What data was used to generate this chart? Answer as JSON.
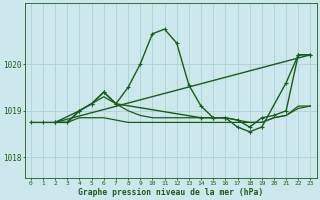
{
  "bg_color": "#cce8ec",
  "grid_color": "#b0d4d8",
  "line_color": "#1a5c1a",
  "title": "Graphe pression niveau de la mer (hPa)",
  "xlim": [
    -0.5,
    23.5
  ],
  "ylim": [
    1017.55,
    1021.3
  ],
  "yticks": [
    1018,
    1019,
    1020
  ],
  "xticks": [
    0,
    1,
    2,
    3,
    4,
    5,
    6,
    7,
    8,
    9,
    10,
    11,
    12,
    13,
    14,
    15,
    16,
    17,
    18,
    19,
    20,
    21,
    22,
    23
  ],
  "lines": [
    {
      "x": [
        0,
        1,
        2,
        3,
        4,
        5,
        6,
        7,
        8,
        9,
        10,
        11,
        12,
        13,
        14,
        15,
        16,
        17,
        18,
        19,
        20,
        21,
        22,
        23
      ],
      "y": [
        1018.75,
        1018.75,
        1018.75,
        1018.75,
        1019.0,
        1019.15,
        1019.4,
        1019.15,
        1019.5,
        1020.0,
        1020.65,
        1020.75,
        1020.45,
        1019.55,
        1019.1,
        1018.85,
        1018.85,
        1018.8,
        1018.65,
        1018.85,
        1018.9,
        1019.0,
        1020.2,
        1020.2
      ],
      "marker": true,
      "lw": 1.0
    },
    {
      "x": [
        2,
        23
      ],
      "y": [
        1018.75,
        1020.2
      ],
      "marker": false,
      "lw": 1.0
    },
    {
      "x": [
        2,
        4,
        5,
        6,
        7,
        14,
        15,
        16,
        17,
        18,
        19,
        21,
        22,
        23
      ],
      "y": [
        1018.75,
        1019.0,
        1019.15,
        1019.4,
        1019.15,
        1018.85,
        1018.85,
        1018.85,
        1018.65,
        1018.55,
        1018.65,
        1019.6,
        1020.2,
        1020.2
      ],
      "marker": true,
      "lw": 1.0
    },
    {
      "x": [
        2,
        3,
        4,
        5,
        6,
        7,
        8,
        9,
        10,
        11,
        12,
        13,
        14,
        15,
        16,
        17,
        18,
        19,
        20,
        21,
        22,
        23
      ],
      "y": [
        1018.75,
        1018.75,
        1018.85,
        1018.85,
        1018.85,
        1018.8,
        1018.75,
        1018.75,
        1018.75,
        1018.75,
        1018.75,
        1018.75,
        1018.75,
        1018.75,
        1018.75,
        1018.75,
        1018.75,
        1018.75,
        1018.85,
        1018.9,
        1019.05,
        1019.1
      ],
      "marker": false,
      "lw": 0.9
    },
    {
      "x": [
        2,
        3,
        4,
        5,
        6,
        7,
        8,
        9,
        10,
        11,
        12,
        13,
        14,
        15,
        16,
        17,
        18,
        19,
        20,
        21,
        22,
        23
      ],
      "y": [
        1018.75,
        1018.75,
        1019.0,
        1019.15,
        1019.3,
        1019.15,
        1019.0,
        1018.9,
        1018.85,
        1018.85,
        1018.85,
        1018.85,
        1018.85,
        1018.85,
        1018.85,
        1018.8,
        1018.75,
        1018.75,
        1018.85,
        1018.9,
        1019.1,
        1019.1
      ],
      "marker": false,
      "lw": 0.9
    }
  ]
}
